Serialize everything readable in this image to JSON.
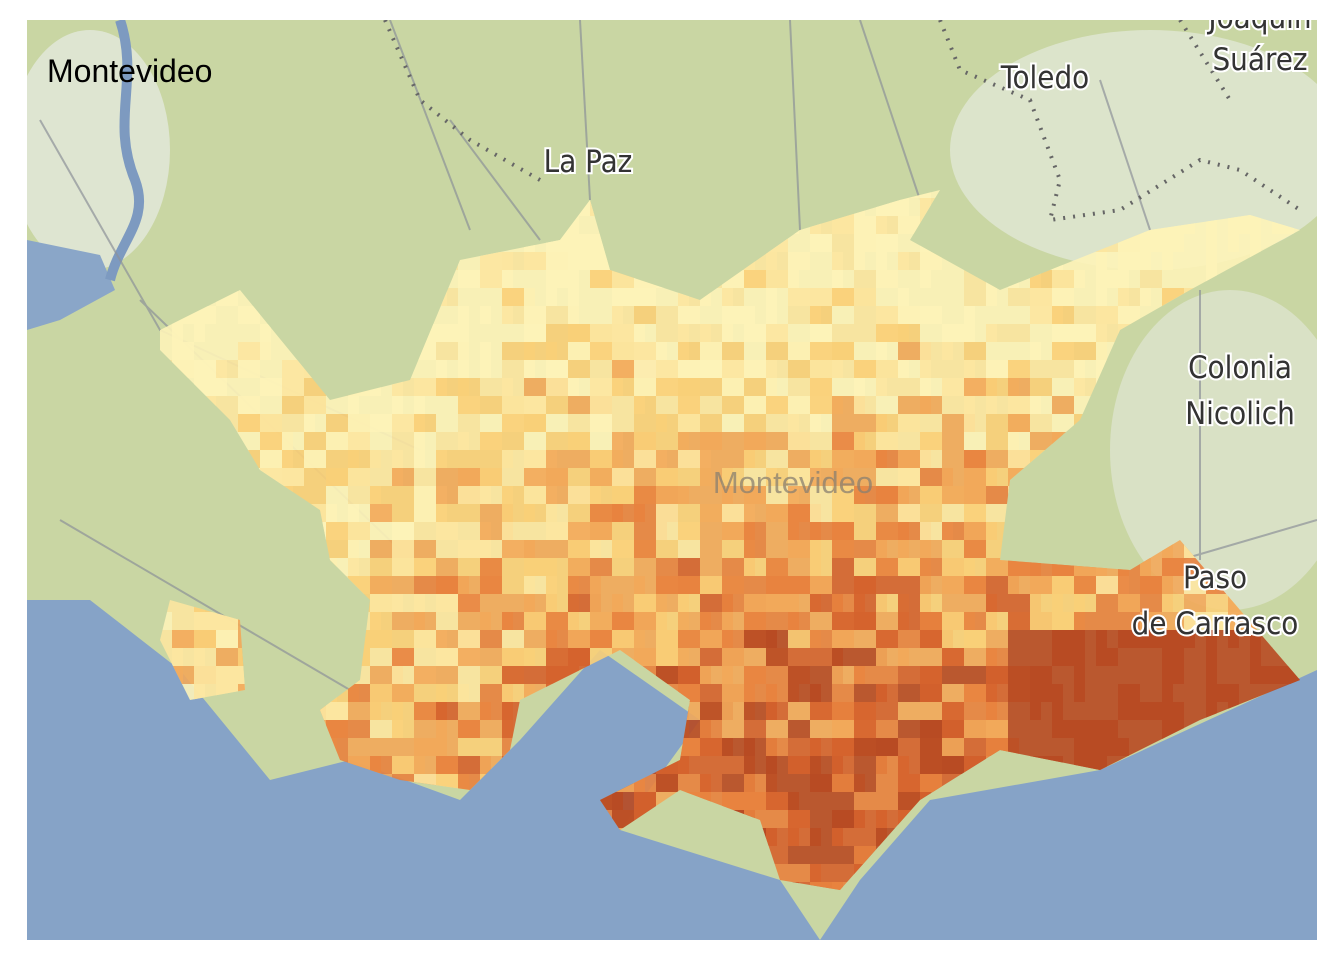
{
  "title": "Montevideo",
  "places": [
    {
      "lines": [
        "Joaquín",
        "Suárez"
      ]
    },
    {
      "lines": [
        "Toledo"
      ]
    },
    {
      "lines": [
        "La Paz"
      ]
    },
    {
      "lines": [
        "Montevideo"
      ]
    },
    {
      "lines": [
        "Colonia",
        "Nicolich"
      ]
    },
    {
      "lines": [
        "Paso",
        "de Carrasco"
      ]
    }
  ]
}
